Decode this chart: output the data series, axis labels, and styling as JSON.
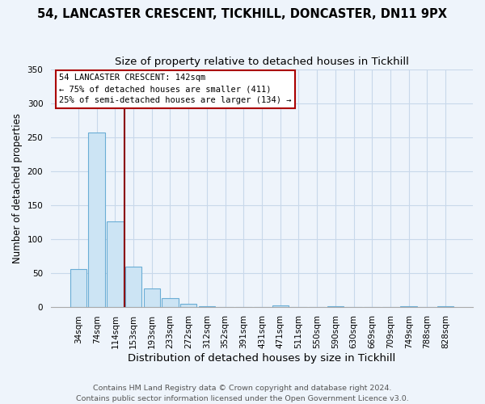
{
  "title": "54, LANCASTER CRESCENT, TICKHILL, DONCASTER, DN11 9PX",
  "subtitle": "Size of property relative to detached houses in Tickhill",
  "xlabel": "Distribution of detached houses by size in Tickhill",
  "ylabel": "Number of detached properties",
  "bar_labels": [
    "34sqm",
    "74sqm",
    "114sqm",
    "153sqm",
    "193sqm",
    "233sqm",
    "272sqm",
    "312sqm",
    "352sqm",
    "391sqm",
    "431sqm",
    "471sqm",
    "511sqm",
    "550sqm",
    "590sqm",
    "630sqm",
    "669sqm",
    "709sqm",
    "749sqm",
    "788sqm",
    "828sqm"
  ],
  "bar_values": [
    55,
    257,
    126,
    59,
    27,
    13,
    4,
    1,
    0,
    0,
    0,
    2,
    0,
    0,
    1,
    0,
    0,
    0,
    1,
    0,
    1
  ],
  "bar_color": "#cce4f4",
  "bar_edge_color": "#6aadd5",
  "vline_color": "#8b0000",
  "annotation_text_line1": "54 LANCASTER CRESCENT: 142sqm",
  "annotation_text_line2": "← 75% of detached houses are smaller (411)",
  "annotation_text_line3": "25% of semi-detached houses are larger (134) →",
  "footer_line1": "Contains HM Land Registry data © Crown copyright and database right 2024.",
  "footer_line2": "Contains public sector information licensed under the Open Government Licence v3.0.",
  "ylim": [
    0,
    350
  ],
  "yticks": [
    0,
    50,
    100,
    150,
    200,
    250,
    300,
    350
  ],
  "background_color": "#eef4fb",
  "grid_color": "#c8d8ea",
  "title_fontsize": 10.5,
  "subtitle_fontsize": 9.5,
  "xlabel_fontsize": 9.5,
  "ylabel_fontsize": 8.5,
  "tick_fontsize": 7.5,
  "footer_fontsize": 6.8
}
